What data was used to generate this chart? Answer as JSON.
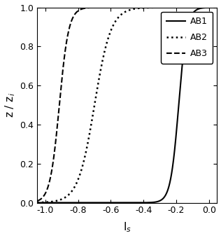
{
  "title": "",
  "xlabel": "I_s",
  "ylabel": "z / z_i",
  "xlim": [
    -1.05,
    0.05
  ],
  "ylim": [
    0.0,
    1.0
  ],
  "xticks": [
    -1.0,
    -0.8,
    -0.6,
    -0.4,
    -0.2,
    0.0
  ],
  "yticks": [
    0.0,
    0.2,
    0.4,
    0.6,
    0.8,
    1.0
  ],
  "curves": [
    {
      "label": "AB1",
      "style": "solid",
      "color": "#000000",
      "linewidth": 1.5,
      "x_mid": -0.185,
      "steepness": 40.0
    },
    {
      "label": "AB2",
      "style": "dotted",
      "color": "#000000",
      "linewidth": 1.8,
      "x_mid": -0.7,
      "steepness": 20.0
    },
    {
      "label": "AB3",
      "style": "dashed",
      "color": "#000000",
      "linewidth": 1.5,
      "x_mid": -0.915,
      "steepness": 35.0
    }
  ],
  "legend_loc": "upper right",
  "legend_fontsize": 9,
  "background_color": "#ffffff",
  "tick_fontsize": 9,
  "label_fontsize": 11
}
